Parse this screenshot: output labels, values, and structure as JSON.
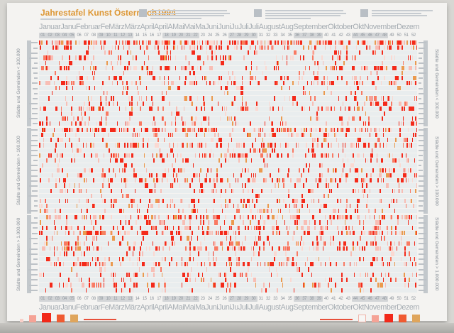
{
  "poster": {
    "title": "Jahrestafel Kunst Österreich1994",
    "title_color": "#dd9734",
    "months_strip": "JanuarJanuFebruarFeMärzMärzAprilAprilAMaiMaiMaJuniJuniJuJuliJuliAugustAugSeptemberOktoberOktNovemberDezemberD",
    "header_note_blocks": 3
  },
  "chart_data": {
    "type": "heatmap",
    "title": "Jahrestafel Kunst Österreich 1994",
    "x_axis": {
      "unit": "Kalenderwoche",
      "labels": [
        "01",
        "02",
        "03",
        "04",
        "05",
        "06",
        "07",
        "08",
        "09",
        "10",
        "11",
        "12",
        "13",
        "14",
        "15",
        "16",
        "17",
        "18",
        "19",
        "20",
        "21",
        "22",
        "23",
        "24",
        "25",
        "26",
        "27",
        "28",
        "29",
        "30",
        "31",
        "32",
        "33",
        "34",
        "35",
        "36",
        "37",
        "38",
        "39",
        "40",
        "41",
        "42",
        "43",
        "44",
        "45",
        "46",
        "47",
        "48",
        "49",
        "50",
        "51",
        "52"
      ]
    },
    "columns_per_week": 7,
    "week_group_highlights": [
      [
        1,
        5
      ],
      [
        9,
        13
      ],
      [
        18,
        22
      ],
      [
        27,
        30
      ],
      [
        36,
        39
      ],
      [
        44,
        48
      ]
    ],
    "sections": [
      {
        "label": "Städte und Gemeinden < 100.000",
        "row_densities": [
          0.5,
          0.22,
          0.1,
          0.15,
          0.08,
          0.18,
          0.06,
          0.12,
          0.22,
          0.08,
          0.05,
          0.15,
          0.1,
          0.2,
          0.06,
          0.12,
          0.16
        ]
      },
      {
        "label": "Städte und Gemeinden > 100.000",
        "row_densities": [
          0.35,
          0.15,
          0.12,
          0.25,
          0.08,
          0.2,
          0.1,
          0.06,
          0.18,
          0.12,
          0.25,
          0.08,
          0.15,
          0.05,
          0.16,
          0.1,
          0.12
        ]
      },
      {
        "label": "Städte und Gemeinden > 1.000.000",
        "row_densities": [
          0.3,
          0.12,
          0.2,
          0.28,
          0.1,
          0.16,
          0.24,
          0.08,
          0.12,
          0.2,
          0.06,
          0.15,
          0.1,
          0.18,
          0.08
        ]
      }
    ],
    "palette": [
      {
        "color": "#f42a1a",
        "weight": 0.48
      },
      {
        "color": "#f8beb5",
        "weight": 0.2
      },
      {
        "color": "#f97a63",
        "weight": 0.14
      },
      {
        "color": "#fbd9d2",
        "weight": 0.1
      },
      {
        "color": "#eb9a4e",
        "weight": 0.08
      }
    ],
    "background": "#e9edee",
    "seed": 1994
  },
  "legend": {
    "left_squares": [
      {
        "size": 5,
        "color": "#f8cfc8",
        "border": ""
      },
      {
        "size": 10,
        "color": "#f5a396",
        "border": ""
      },
      {
        "size": 13,
        "color": "#f2291a",
        "border": ""
      },
      {
        "size": 11,
        "color": "#f05a31",
        "border": ""
      },
      {
        "size": 11,
        "color": "#dfa55c",
        "border": ""
      }
    ],
    "right_squares": [
      {
        "size": 9,
        "color": "#f7f6f4",
        "border": "#f0b4aa"
      },
      {
        "size": 10,
        "color": "#f5a396",
        "border": ""
      },
      {
        "size": 12,
        "color": "#f2291a",
        "border": ""
      },
      {
        "size": 11,
        "color": "#f05a31",
        "border": ""
      },
      {
        "size": 11,
        "color": "#dfa55c",
        "border": ""
      }
    ]
  }
}
